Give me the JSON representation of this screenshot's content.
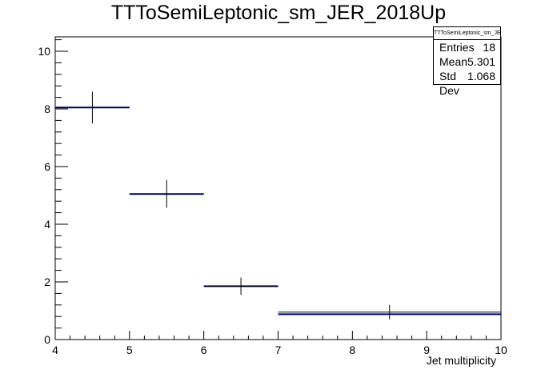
{
  "chart_data": {
    "type": "histogram",
    "title": "TTToSemiLeptonic_sm_JER_2018Up",
    "xlabel": "Jet multiplicity",
    "ylabel": "",
    "xlim": [
      4,
      10
    ],
    "ylim": [
      0,
      10.5
    ],
    "xticks": [
      "4",
      "5",
      "6",
      "7",
      "8",
      "9",
      "10"
    ],
    "yticks": [
      "0",
      "2",
      "4",
      "6",
      "8",
      "10"
    ],
    "bins": [
      {
        "xlow": 4,
        "xhigh": 5,
        "value": 8.05,
        "error": 0.55,
        "ref": 8.05
      },
      {
        "xlow": 5,
        "xhigh": 6,
        "value": 5.05,
        "error": 0.48,
        "ref": 5.05
      },
      {
        "xlow": 6,
        "xhigh": 7,
        "value": 1.85,
        "error": 0.3,
        "ref": 1.85
      },
      {
        "xlow": 7,
        "xhigh": 10,
        "value": 0.95,
        "error": 0.25,
        "ref": 0.88
      }
    ],
    "colors": {
      "data": "#000000",
      "ref": "#00008b"
    },
    "stats": {
      "title": "TTToSemiLeptonic_sm_JER_2018Up",
      "rows": [
        {
          "label": "Entries",
          "value": "18"
        },
        {
          "label": "Mean",
          "value": "5.301"
        },
        {
          "label": "Std Dev",
          "value": "1.068"
        }
      ]
    }
  }
}
